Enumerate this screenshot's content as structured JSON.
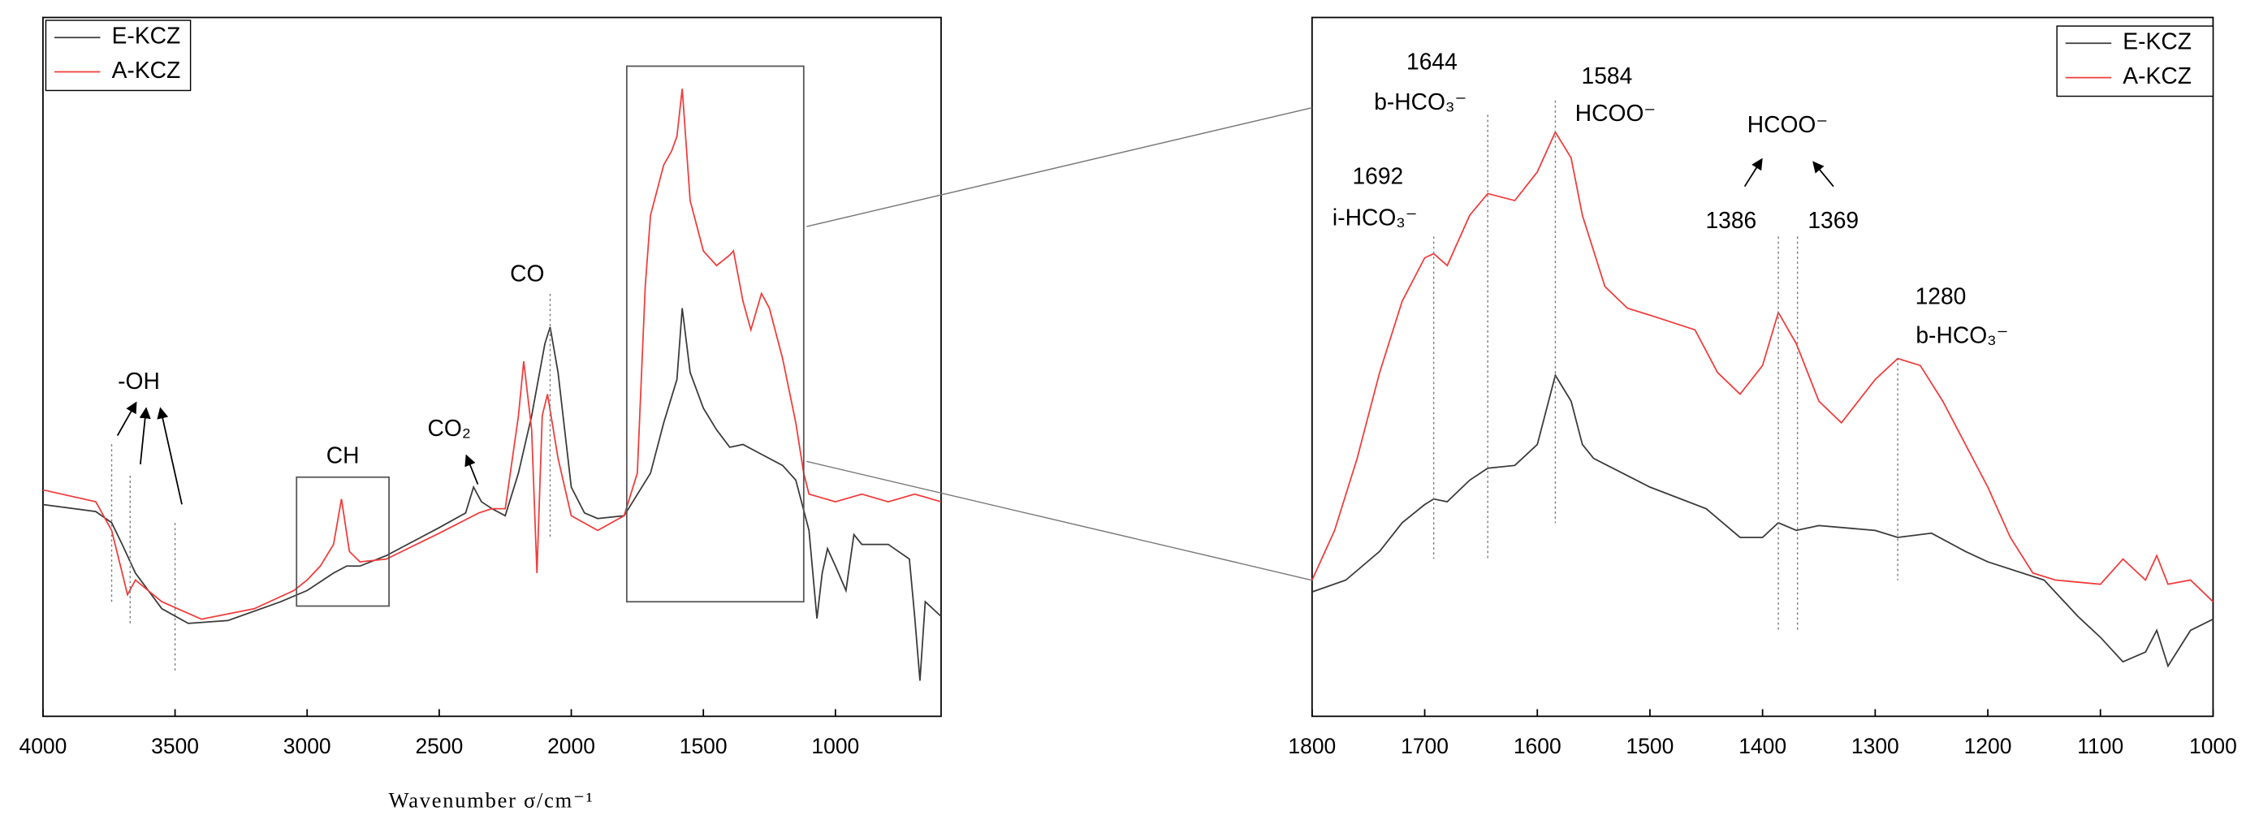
{
  "chart_data": [
    {
      "type": "line",
      "xlabel": "Wavenumber σ/cm⁻¹",
      "xlim": [
        4000,
        600
      ],
      "xticks": [
        4000,
        3500,
        3000,
        2500,
        2000,
        1500,
        1000
      ],
      "ylim": [
        0,
        100
      ],
      "legend": "upper left",
      "series": [
        {
          "name": "E-KCZ",
          "color": "#3a3a3a",
          "x": [
            4000,
            3800,
            3740,
            3700,
            3650,
            3550,
            3450,
            3300,
            3100,
            3000,
            2900,
            2850,
            2800,
            2700,
            2600,
            2500,
            2400,
            2370,
            2340,
            2300,
            2250,
            2200,
            2150,
            2100,
            2080,
            2050,
            2000,
            1950,
            1900,
            1800,
            1700,
            1650,
            1600,
            1580,
            1550,
            1500,
            1450,
            1400,
            1350,
            1300,
            1200,
            1150,
            1100,
            1070,
            1050,
            1030,
            1000,
            960,
            930,
            900,
            800,
            720,
            700,
            680,
            660,
            600
          ],
          "values": [
            30.3,
            29.3,
            27.7,
            24.6,
            20.5,
            15.4,
            13.3,
            13.7,
            16.4,
            18.0,
            20.5,
            21.5,
            21.5,
            23.0,
            25.0,
            27.0,
            29.1,
            32.8,
            30.7,
            29.7,
            28.7,
            34.8,
            43.0,
            53.3,
            55.7,
            49.2,
            32.8,
            29.1,
            28.3,
            28.7,
            34.8,
            42.0,
            48.2,
            58.4,
            49.2,
            44.1,
            41.0,
            38.5,
            38.9,
            37.9,
            35.9,
            33.8,
            26.6,
            14.0,
            20.5,
            24.0,
            21.5,
            18.0,
            26.0,
            24.6,
            24.6,
            22.5,
            14.3,
            5.1,
            16.4,
            14.3
          ]
        },
        {
          "name": "A-KCZ",
          "color": "#f03c3c",
          "x": [
            4000,
            3800,
            3740,
            3700,
            3680,
            3650,
            3550,
            3400,
            3200,
            3050,
            3000,
            2950,
            2900,
            2870,
            2840,
            2800,
            2700,
            2500,
            2350,
            2300,
            2250,
            2200,
            2180,
            2150,
            2130,
            2110,
            2090,
            2050,
            2000,
            1900,
            1800,
            1750,
            1720,
            1700,
            1650,
            1620,
            1600,
            1580,
            1550,
            1500,
            1450,
            1400,
            1386,
            1350,
            1320,
            1280,
            1250,
            1200,
            1150,
            1120,
            1100,
            1000,
            900,
            800,
            700,
            600
          ],
          "values": [
            32.4,
            30.7,
            26.6,
            20.5,
            17.4,
            19.5,
            16.4,
            13.9,
            15.4,
            18.0,
            19.5,
            21.5,
            24.6,
            31.1,
            23.6,
            22.1,
            22.5,
            26.2,
            29.1,
            29.7,
            29.7,
            43.0,
            50.8,
            41.0,
            20.5,
            43.0,
            46.1,
            36.9,
            28.7,
            26.6,
            28.7,
            34.8,
            61.5,
            71.7,
            78.9,
            80.9,
            83.0,
            89.8,
            73.8,
            66.6,
            64.5,
            66.0,
            66.6,
            59.4,
            55.3,
            60.5,
            58.4,
            51.2,
            42.0,
            34.8,
            31.8,
            30.7,
            31.8,
            30.7,
            31.8,
            30.7
          ]
        }
      ],
      "annotations": [
        {
          "text": "-OH",
          "x": [
            3740,
            3670,
            3500
          ]
        },
        {
          "text": "CO₂",
          "x": 2370
        },
        {
          "text": "CO",
          "x": 2080
        }
      ],
      "regions": [
        {
          "text": "CH",
          "xrange": [
            3040,
            2690
          ]
        },
        {
          "xrange": [
            1790,
            1120
          ]
        }
      ]
    },
    {
      "type": "line",
      "xlim": [
        1800,
        1000
      ],
      "xticks": [
        1800,
        1700,
        1600,
        1500,
        1400,
        1300,
        1200,
        1100,
        1000
      ],
      "ylim": [
        0,
        100
      ],
      "legend": "upper right",
      "series": [
        {
          "name": "E-KCZ",
          "color": "#3a3a3a",
          "x": [
            1800,
            1770,
            1740,
            1720,
            1700,
            1692,
            1680,
            1660,
            1644,
            1620,
            1600,
            1584,
            1570,
            1560,
            1550,
            1500,
            1450,
            1420,
            1400,
            1386,
            1370,
            1350,
            1300,
            1280,
            1250,
            1220,
            1200,
            1150,
            1120,
            1100,
            1080,
            1060,
            1050,
            1040,
            1020,
            1000
          ],
          "values": [
            17.8,
            19.5,
            23.6,
            27.7,
            30.3,
            31.1,
            30.7,
            33.8,
            35.5,
            35.9,
            38.9,
            48.8,
            45.1,
            38.9,
            36.9,
            32.8,
            29.7,
            25.6,
            25.6,
            27.7,
            26.6,
            27.3,
            26.6,
            25.6,
            26.2,
            23.6,
            22.1,
            19.5,
            14.3,
            11.3,
            7.8,
            9.2,
            12.3,
            7.2,
            12.3,
            13.9
          ]
        },
        {
          "name": "A-KCZ",
          "color": "#f03c3c",
          "x": [
            1800,
            1780,
            1760,
            1740,
            1720,
            1700,
            1692,
            1680,
            1660,
            1644,
            1620,
            1600,
            1584,
            1570,
            1560,
            1540,
            1520,
            1500,
            1460,
            1440,
            1420,
            1400,
            1386,
            1370,
            1350,
            1330,
            1300,
            1280,
            1260,
            1240,
            1200,
            1180,
            1160,
            1140,
            1100,
            1080,
            1060,
            1050,
            1040,
            1020,
            1000
          ],
          "values": [
            19.5,
            26.6,
            36.9,
            49.2,
            59.4,
            65.6,
            66.2,
            64.5,
            71.7,
            74.8,
            73.8,
            77.9,
            83.6,
            79.9,
            71.7,
            61.5,
            58.4,
            57.4,
            55.3,
            49.2,
            46.1,
            50.2,
            57.8,
            53.3,
            45.1,
            42.0,
            48.2,
            51.2,
            50.2,
            45.1,
            32.8,
            25.6,
            20.5,
            19.5,
            18.9,
            22.5,
            19.5,
            23.0,
            18.9,
            19.5,
            16.4
          ]
        }
      ],
      "annotations": [
        {
          "x": 1692,
          "text": "i-HCO₃⁻"
        },
        {
          "x": 1644,
          "text": "b-HCO₃⁻"
        },
        {
          "x": 1584,
          "text": "HCOO⁻"
        },
        {
          "x": 1386
        },
        {
          "x": 1369
        },
        {
          "text": "HCOO⁻"
        },
        {
          "x": 1280,
          "text": "b-HCO₃⁻"
        }
      ]
    }
  ]
}
